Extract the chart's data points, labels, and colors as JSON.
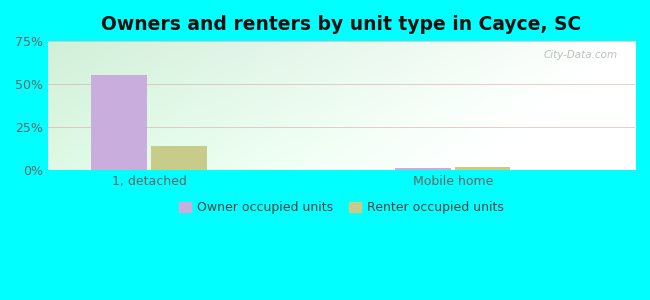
{
  "title": "Owners and renters by unit type in Cayce, SC",
  "categories": [
    "1, detached",
    "Mobile home"
  ],
  "owner_values": [
    55.5,
    1.2
  ],
  "renter_values": [
    14.0,
    1.8
  ],
  "owner_color": "#c9aedd",
  "renter_color": "#c8cc8a",
  "ylim": [
    0,
    75
  ],
  "yticks": [
    0,
    25,
    50,
    75
  ],
  "yticklabels": [
    "0%",
    "25%",
    "50%",
    "75%"
  ],
  "bg_color_topleft": "#d0eed8",
  "bg_color_topright": "#e8f5f0",
  "bg_color_bottom": "#f0faf0",
  "outer_bg": "#00ffff",
  "title_fontsize": 13.5,
  "legend_labels": [
    "Owner occupied units",
    "Renter occupied units"
  ],
  "watermark": "City-Data.com",
  "bar_width": 0.55,
  "group_positions": [
    1.0,
    4.0
  ],
  "xlim": [
    0,
    5.8
  ]
}
